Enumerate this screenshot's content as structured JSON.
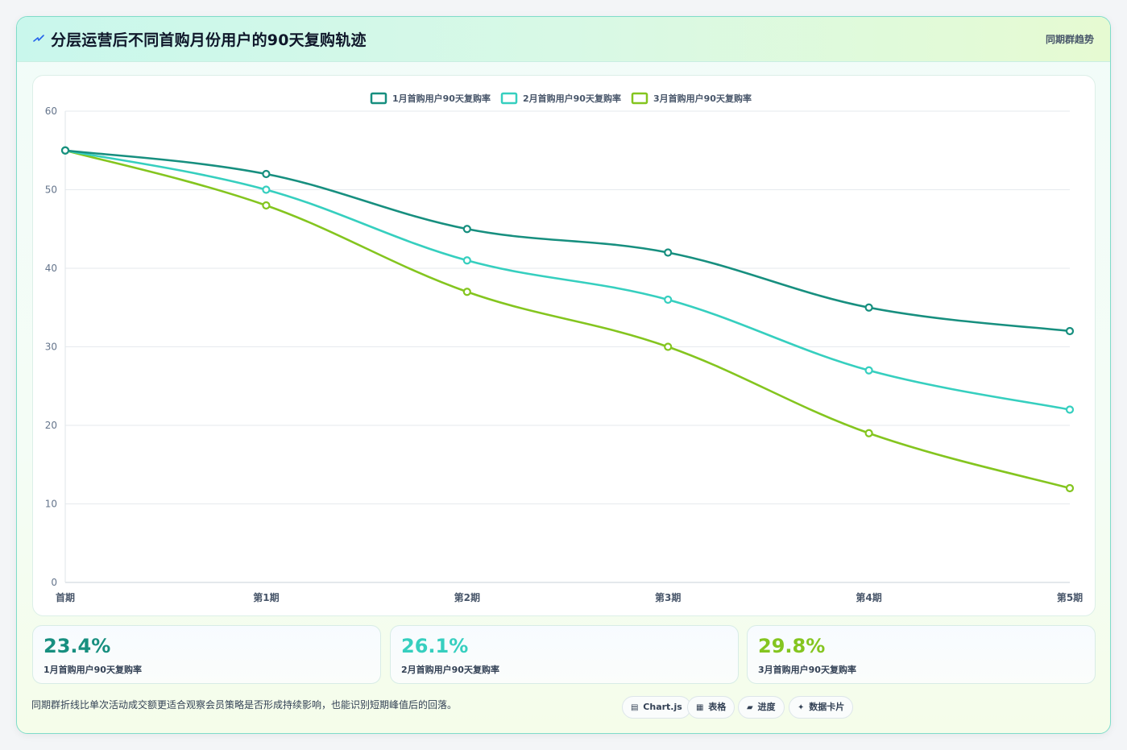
{
  "header": {
    "title": "分层运营后不同首购月份用户的90天复购轨迹",
    "tag": "同期群趋势"
  },
  "chart_data": {
    "type": "line",
    "categories": [
      "首期",
      "第1期",
      "第2期",
      "第3期",
      "第4期",
      "第5期"
    ],
    "series": [
      {
        "name": "1月首购用户90天复购率",
        "color": "#178f7f",
        "values": [
          55,
          52,
          45,
          42,
          35,
          32
        ]
      },
      {
        "name": "2月首购用户90天复购率",
        "color": "#36cfbf",
        "values": [
          55,
          50,
          41,
          36,
          27,
          22
        ]
      },
      {
        "name": "3月首购用户90天复购率",
        "color": "#84c51f",
        "values": [
          55,
          48,
          37,
          30,
          19,
          12
        ]
      }
    ],
    "yticks": [
      0,
      10,
      20,
      30,
      40,
      50,
      60
    ],
    "ylim": [
      0,
      60
    ],
    "grid": true,
    "legend": "top-center"
  },
  "stats": [
    {
      "value": "23.4%",
      "label": "1月首购用户90天复购率",
      "color": "#178f7f"
    },
    {
      "value": "26.1%",
      "label": "2月首购用户90天复购率",
      "color": "#36cfbf"
    },
    {
      "value": "29.8%",
      "label": "3月首购用户90天复购率",
      "color": "#84c51f"
    }
  ],
  "note": "同期群折线比单次活动成交额更适合观察会员策略是否形成持续影响，也能识别短期峰值后的回落。",
  "pills": [
    {
      "icon": "chart-icon",
      "glyph": "▤",
      "label": "Chart.js"
    },
    {
      "icon": "table-icon",
      "glyph": "▦",
      "label": "表格"
    },
    {
      "icon": "progress-icon",
      "glyph": "▰",
      "label": "进度"
    },
    {
      "icon": "sparkle-icon",
      "glyph": "✦",
      "label": "数据卡片"
    }
  ]
}
